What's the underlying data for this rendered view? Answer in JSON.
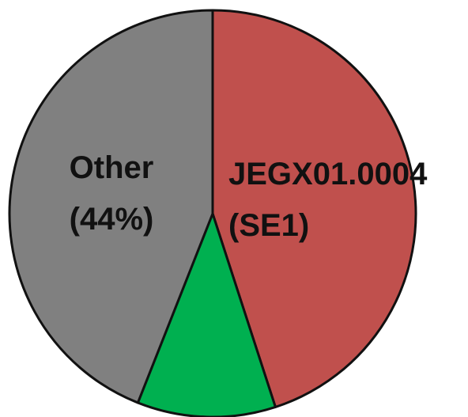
{
  "chart_data": {
    "type": "pie",
    "title": "",
    "start_angle": "12 o'clock",
    "direction": "clockwise",
    "slices": [
      {
        "name": "JEGX01.0004 (SE1)",
        "label_lines": [
          "JEGX01.0004",
          "(SE1)"
        ],
        "value": 45,
        "color": "#c0504d"
      },
      {
        "name": "",
        "label_lines": [],
        "value": 11,
        "color": "#00b050"
      },
      {
        "name": "Other (44%)",
        "label_lines": [
          "Other",
          "(44%)"
        ],
        "value": 44,
        "color": "#808080"
      }
    ],
    "legend": "none",
    "grid": false
  }
}
